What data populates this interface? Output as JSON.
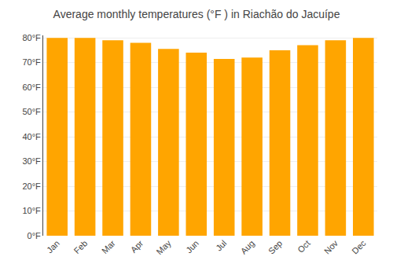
{
  "chart_data": {
    "type": "bar",
    "title": "Average monthly temperatures (°F ) in Riachão do Jacuípe",
    "categories": [
      "Jan",
      "Feb",
      "Mar",
      "Apr",
      "May",
      "Jun",
      "Jul",
      "Aug",
      "Sep",
      "Oct",
      "Nov",
      "Dec"
    ],
    "values": [
      80,
      80,
      79,
      78,
      75.5,
      74,
      71.5,
      72,
      75,
      77,
      79,
      80
    ],
    "color": "#FFA500",
    "ylim": [
      0,
      81
    ],
    "yticks": [
      {
        "value": 0,
        "label": "0°F"
      },
      {
        "value": 10,
        "label": "10°F"
      },
      {
        "value": 20,
        "label": "20°F"
      },
      {
        "value": 30,
        "label": "30°F"
      },
      {
        "value": 40,
        "label": "40°F"
      },
      {
        "value": 50,
        "label": "50°F"
      },
      {
        "value": 60,
        "label": "60°F"
      },
      {
        "value": 70,
        "label": "70°F"
      },
      {
        "value": 80,
        "label": "80°F"
      }
    ],
    "grid": true
  }
}
